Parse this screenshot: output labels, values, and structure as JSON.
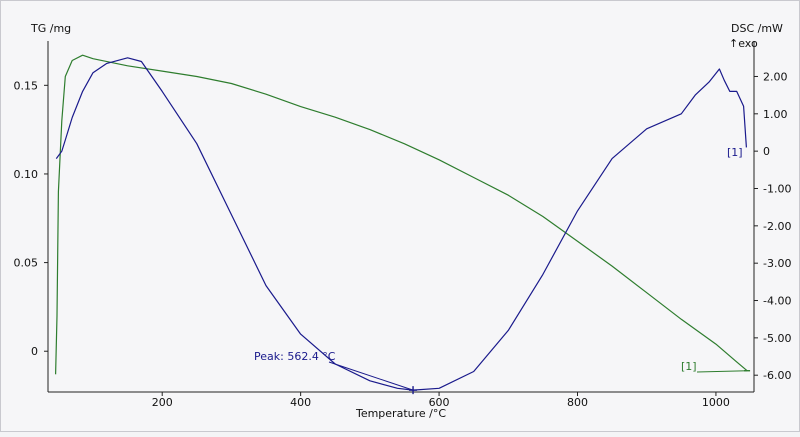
{
  "chart_data": {
    "type": "line",
    "xlabel": "Temperature /°C",
    "ylabel_left": "TG /mg",
    "ylabel_right": "DSC /mW",
    "right_axis_note": "↑exo",
    "xlim": [
      35,
      1055
    ],
    "ylim_left": [
      -0.023,
      0.175
    ],
    "ylim_right": [
      -6.45,
      2.95
    ],
    "x_ticks": [
      200,
      400,
      600,
      800,
      1000
    ],
    "y_left_ticks": [
      0,
      0.05,
      0.1,
      0.15
    ],
    "y_left_tick_labels": [
      "0",
      "0.05",
      "0.10",
      "0.15"
    ],
    "y_right_ticks": [
      2,
      1,
      0,
      -1,
      -2,
      -3,
      -4,
      -5,
      -6
    ],
    "y_right_tick_labels": [
      "2.00",
      "1.00",
      "0",
      "-1.00",
      "-2.00",
      "-3.00",
      "-4.00",
      "-5.00",
      "-6.00"
    ],
    "grid": false,
    "series": [
      {
        "axis": "left",
        "color": "#2e7d2e",
        "x": [
          46,
          48,
          50,
          55,
          60,
          70,
          85,
          100,
          150,
          200,
          250,
          300,
          350,
          400,
          450,
          500,
          550,
          600,
          650,
          700,
          750,
          800,
          850,
          900,
          950,
          1000,
          1030,
          1045
        ],
        "y": [
          -0.013,
          0.02,
          0.09,
          0.13,
          0.155,
          0.164,
          0.167,
          0.165,
          0.161,
          0.158,
          0.155,
          0.151,
          0.145,
          0.138,
          0.132,
          0.125,
          0.117,
          0.108,
          0.098,
          0.088,
          0.076,
          0.062,
          0.048,
          0.033,
          0.018,
          0.004,
          -0.006,
          -0.011
        ]
      },
      {
        "axis": "right",
        "color": "#1a1a8c",
        "x": [
          47,
          55,
          60,
          70,
          85,
          100,
          120,
          150,
          170,
          200,
          250,
          300,
          350,
          400,
          450,
          500,
          540,
          562.4,
          600,
          650,
          700,
          750,
          800,
          850,
          900,
          950,
          970,
          990,
          1005,
          1012,
          1020,
          1030,
          1040,
          1044
        ],
        "y": [
          -0.2,
          0,
          0.3,
          0.9,
          1.6,
          2.1,
          2.35,
          2.5,
          2.4,
          1.6,
          0.2,
          -1.7,
          -3.6,
          -4.9,
          -5.7,
          -6.15,
          -6.35,
          -6.4,
          -6.35,
          -5.9,
          -4.8,
          -3.3,
          -1.6,
          -0.2,
          0.6,
          1.0,
          1.5,
          1.85,
          2.2,
          1.9,
          1.6,
          1.6,
          1.2,
          0.1
        ]
      }
    ],
    "annotations": {
      "peak_text": "Peak: 562.4 °C",
      "peak_x": 562.4,
      "peak_y": -6.4,
      "dsc_label": "[1]",
      "tg_label": "[1]"
    }
  }
}
